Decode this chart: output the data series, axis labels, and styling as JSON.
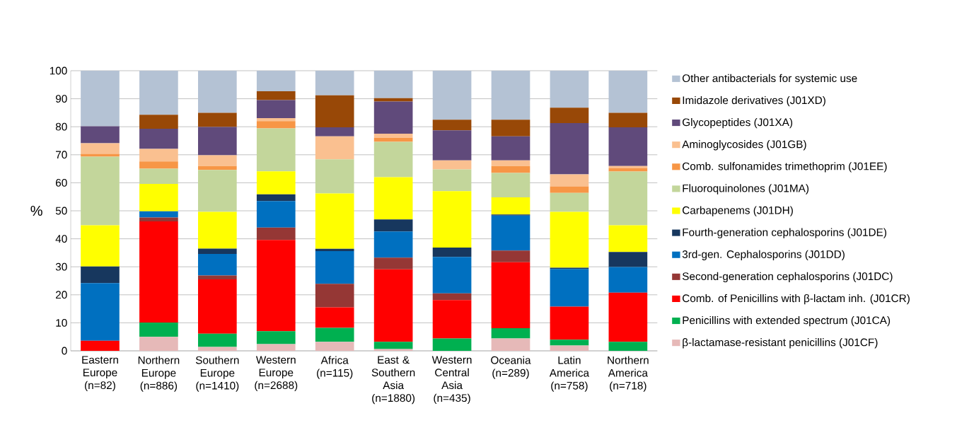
{
  "chart_data": {
    "type": "bar",
    "stacked": true,
    "ylabel": "%",
    "ylim": [
      0,
      100
    ],
    "yticks": [
      0,
      10,
      20,
      30,
      40,
      50,
      60,
      70,
      80,
      90,
      100
    ],
    "grid": "y",
    "legend": "right",
    "categories": [
      "Eastern Europe (n=82)",
      "Northern Europe (n=886)",
      "Southern Europe (n=1410)",
      "Western Europe (n=2688)",
      "Africa (n=115)",
      "East & Southern Asia (n=1880)",
      "Western Central Asia (n=435)",
      "Oceania (n=289)",
      "Latin America (n=758)",
      "Northern America (n=718)"
    ],
    "series": [
      {
        "name": "β-lactamase-resistant penicillins (J01CF)",
        "color": "#e6b9b8",
        "values": [
          0,
          5.0,
          1.4,
          2.4,
          3.2,
          0.6,
          0,
          4.4,
          1.9,
          0
        ]
      },
      {
        "name": "Penicillins with extended spectrum (J01CA)",
        "color": "#00b050",
        "values": [
          0,
          5.1,
          4.7,
          4.6,
          5.0,
          2.6,
          4.4,
          3.7,
          2.1,
          3.2
        ]
      },
      {
        "name": "Comb. of Penicillins with β-lactam inh. (J01CR)",
        "color": "#ff0000",
        "values": [
          3.6,
          36.1,
          19.4,
          32.6,
          7.3,
          25.9,
          13.7,
          23.5,
          11.8,
          17.6
        ]
      },
      {
        "name": "Second-generation cephalosporins (J01DC)",
        "color": "#953735",
        "values": [
          0,
          1.4,
          1.4,
          4.4,
          8.4,
          4.2,
          2.4,
          4.2,
          0,
          0
        ]
      },
      {
        "name": "3rd-gen. Cephalosporins (J01DD)",
        "color": "#0070c0",
        "values": [
          20.6,
          2.2,
          7.7,
          9.5,
          11.7,
          9.3,
          13.0,
          12.5,
          13.4,
          9.1
        ]
      },
      {
        "name": "Fourth-generation cephalosporins (J01DE)",
        "color": "#17375e",
        "values": [
          5.9,
          0,
          1.9,
          2.4,
          0.8,
          4.3,
          3.4,
          0.4,
          0.5,
          5.4
        ]
      },
      {
        "name": "Carbapenems (J01DH)",
        "color": "#ffff00",
        "values": [
          14.7,
          9.8,
          13.1,
          8.2,
          19.8,
          15.1,
          20.1,
          6.1,
          19.9,
          9.5
        ]
      },
      {
        "name": "Fluoroquinolones (J01MA)",
        "color": "#c3d69b",
        "values": [
          24.5,
          5.4,
          15.0,
          15.3,
          12.2,
          12.6,
          7.8,
          8.7,
          6.8,
          19.2
        ]
      },
      {
        "name": "Comb. sulfonamides trimethoprim (J01EE)",
        "color": "#f79646",
        "values": [
          1.0,
          2.6,
          1.4,
          2.6,
          0,
          1.5,
          0,
          2.5,
          2.3,
          1.3
        ]
      },
      {
        "name": "Aminoglycosides (J01GB)",
        "color": "#fac090",
        "values": [
          3.8,
          4.5,
          3.8,
          1.1,
          8.2,
          1.4,
          3.2,
          2.0,
          4.3,
          0.7
        ]
      },
      {
        "name": "Glycopeptides (J01XA)",
        "color": "#604a7b",
        "values": [
          6.1,
          7.2,
          10.1,
          6.4,
          3.2,
          11.5,
          10.7,
          8.6,
          18.3,
          13.8
        ]
      },
      {
        "name": "Imidazole derivatives (J01XD)",
        "color": "#984807",
        "values": [
          0,
          5.0,
          5.1,
          3.2,
          11.4,
          1.2,
          3.8,
          5.9,
          5.5,
          5.2
        ]
      },
      {
        "name": "Other antibacterials for systemic use",
        "color": "#b4c2d4",
        "values": [
          19.8,
          15.7,
          15.0,
          7.3,
          8.8,
          9.8,
          17.5,
          17.5,
          13.2,
          15.0
        ]
      }
    ]
  }
}
